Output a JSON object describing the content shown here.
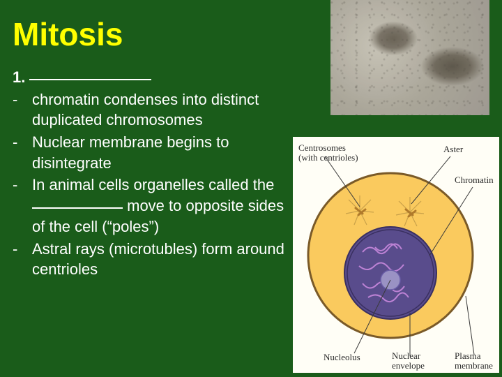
{
  "title": "Mitosis",
  "heading_number": "1.",
  "bullets": [
    "chromatin condenses into distinct duplicated chromosomes",
    "Nuclear membrane begins to disintegrate",
    "In animal cells organelles called the ___BLANK___ move to opposite sides of the cell (“poles”)",
    "Astral rays (microtubles) form around centrioles"
  ],
  "diagram": {
    "labels": {
      "centrosomes": "Centrosomes",
      "centrosomes_sub": "(with centrioles)",
      "aster": "Aster",
      "chromatin": "Chromatin",
      "nucleolus": "Nucleolus",
      "nuclear_envelope": "Nuclear",
      "nuclear_envelope2": "envelope",
      "plasma": "Plasma",
      "plasma2": "membrane"
    },
    "colors": {
      "bg": "#fffef6",
      "cell_fill": "#faca5e",
      "cell_stroke": "#7a5a28",
      "nucleus_fill": "#594c8c",
      "nucleus_stroke": "#3a3060",
      "nucleolus_fill": "#9a92c4",
      "chromatin_stroke": "#c888dd",
      "centrosome_stroke": "#b07a2a",
      "aster_stroke": "#c9a14a",
      "leader_stroke": "#3a3a3a"
    }
  }
}
